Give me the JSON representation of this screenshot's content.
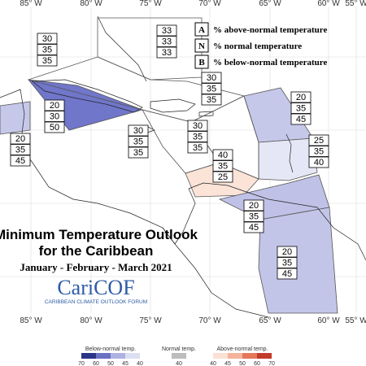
{
  "axis_labels": [
    "85° W",
    "80° W",
    "75° W",
    "70° W",
    "65° W",
    "60° W",
    "55° W"
  ],
  "legend": [
    {
      "letter": "A",
      "text": "% above-normal temperature"
    },
    {
      "letter": "N",
      "text": "% normal temperature"
    },
    {
      "letter": "B",
      "text": "% below-normal temperature"
    }
  ],
  "title": "Minimum Temperature Outlook",
  "title2": "for the Caribbean",
  "subtitle": "January - February - March 2021",
  "logo": "CariCOF",
  "logo_sub": "CARIBBEAN CLIMATE OUTLOOK FORUM",
  "regions": [
    {
      "values": [
        30,
        35,
        35
      ]
    },
    {
      "values": [
        33,
        33,
        33
      ]
    },
    {
      "values": [
        20,
        30,
        50
      ],
      "color": "#7076c9"
    },
    {
      "values": [
        30,
        35,
        35
      ]
    },
    {
      "values": [
        20,
        35,
        45
      ],
      "color": "#c6c8ea"
    },
    {
      "values": [
        20,
        35,
        45
      ],
      "color": "#c6c8ea"
    },
    {
      "values": [
        30,
        35,
        35
      ]
    },
    {
      "values": [
        30,
        35,
        35
      ]
    },
    {
      "values": [
        25,
        35,
        40
      ],
      "color": "#e6e7f6"
    },
    {
      "values": [
        40,
        35,
        25
      ],
      "color": "#fbe3d8"
    },
    {
      "values": [
        20,
        35,
        45
      ],
      "color": "#bfc1e6"
    },
    {
      "values": [
        20,
        35,
        45
      ],
      "color": "#c3c5e8"
    }
  ],
  "colorbar": {
    "below": {
      "label": "Below-normal temp.",
      "ticks": [
        70,
        60,
        50,
        45,
        40
      ],
      "colors": [
        "#2b3585",
        "#6a72c4",
        "#aeb2e0",
        "#dcdef2"
      ]
    },
    "normal": {
      "label": "Normal temp.",
      "ticks": [
        40
      ],
      "colors": [
        "#bdbdbd"
      ]
    },
    "above": {
      "label": "Above-normal temp.",
      "ticks": [
        40,
        45,
        50,
        60,
        70
      ],
      "colors": [
        "#fbe0d5",
        "#f4b39b",
        "#e5775a",
        "#c23b2a"
      ]
    }
  }
}
